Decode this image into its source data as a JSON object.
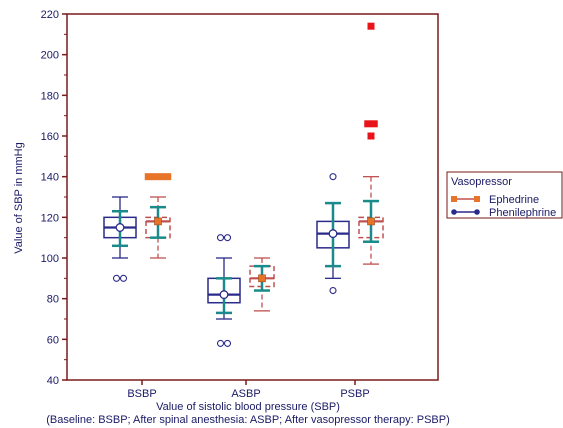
{
  "chart_data": {
    "type": "box",
    "xlabel": "Value of sistolic blood pressure (SBP)",
    "xlabel2": "(Baseline: BSBP; After spinal anesthesia: ASBP; After vasopressor therapy: PSBP)",
    "ylabel": "Value of SBP  in mmHg",
    "ylim": [
      40,
      220
    ],
    "yticks": [
      40,
      60,
      80,
      100,
      120,
      140,
      160,
      180,
      200,
      220
    ],
    "categories": [
      "BSBP",
      "ASBP",
      "PSBP"
    ],
    "legend": {
      "title": "Vasopressor",
      "position": "right",
      "entries": [
        "Ephedrine",
        "Phenilephrine"
      ]
    },
    "colors": {
      "frame": "#7a1a1a",
      "ephedrine": "#c05050",
      "ephedrine_marker": "#e8742a",
      "phenilephrine": "#2a2a8a",
      "mean_ci": "#1a8a8a",
      "text": "#1a1a66"
    },
    "series": [
      {
        "name": "Phenilephrine",
        "boxes": [
          {
            "category": "BSBP",
            "whisker_low": 100,
            "q1": 110,
            "median": 115,
            "q3": 120,
            "whisker_high": 130,
            "mean": 115,
            "ci_low": 106,
            "ci_high": 123,
            "outliers": [
              90,
              90
            ]
          },
          {
            "category": "ASBP",
            "whisker_low": 70,
            "q1": 78,
            "median": 82,
            "q3": 90,
            "whisker_high": 100,
            "mean": 82,
            "ci_low": 73,
            "ci_high": 90,
            "outliers": [
              110,
              110,
              58,
              58
            ]
          },
          {
            "category": "PSBP",
            "whisker_low": 90,
            "q1": 105,
            "median": 112,
            "q3": 118,
            "whisker_high": 127,
            "mean": 112,
            "ci_low": 96,
            "ci_high": 127,
            "outliers": [
              140,
              84
            ]
          }
        ]
      },
      {
        "name": "Ephedrine",
        "boxes": [
          {
            "category": "BSBP",
            "whisker_low": 100,
            "q1": 110,
            "median": 118,
            "q3": 120,
            "whisker_high": 130,
            "mean": 118,
            "ci_low": 110,
            "ci_high": 125,
            "outliers": [
              140,
              140,
              140,
              140
            ]
          },
          {
            "category": "ASBP",
            "whisker_low": 74,
            "q1": 86,
            "median": 90,
            "q3": 96,
            "whisker_high": 100,
            "mean": 90,
            "ci_low": 84,
            "ci_high": 96,
            "outliers": []
          },
          {
            "category": "PSBP",
            "whisker_low": 97,
            "q1": 110,
            "median": 118,
            "q3": 120,
            "whisker_high": 140,
            "mean": 118,
            "ci_low": 108,
            "ci_high": 128,
            "outliers": [
              214,
              166,
              166,
              160
            ]
          }
        ]
      }
    ]
  }
}
